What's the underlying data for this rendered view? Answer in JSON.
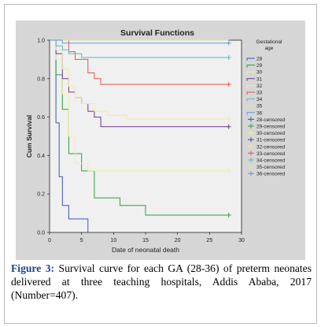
{
  "chart_data": {
    "type": "line",
    "title": "Survival Functions",
    "xlabel": "Date of neonatal death",
    "ylabel": "Cum Survival",
    "xlim": [
      0,
      30
    ],
    "ylim": [
      0.0,
      1.0
    ],
    "x_ticks": [
      "0",
      "5",
      "10",
      "15",
      "20",
      "25",
      "30"
    ],
    "y_ticks": [
      "0.0",
      "0.2",
      "0.4",
      "0.6",
      "0.8",
      "1.0"
    ],
    "legend_title": "Gestational age",
    "legend_placement": "right",
    "legend": [
      {
        "label": "28",
        "color": "#3a56b4",
        "marker": "line"
      },
      {
        "label": "29",
        "color": "#2e9e3e",
        "marker": "line"
      },
      {
        "label": "30",
        "color": "#eef0a8",
        "marker": "line"
      },
      {
        "label": "31",
        "color": "#6a3a8a",
        "marker": "line"
      },
      {
        "label": "32",
        "color": "#f1e8b0",
        "marker": "line"
      },
      {
        "label": "33",
        "color": "#e2574c",
        "marker": "line"
      },
      {
        "label": "34",
        "color": "#5ab8c6",
        "marker": "line"
      },
      {
        "label": "35",
        "color": "#e6e4a0",
        "marker": "line"
      },
      {
        "label": "36",
        "color": "#5f9ad6",
        "marker": "line"
      },
      {
        "label": "28-censored",
        "color": "#3a56b4",
        "marker": "plus"
      },
      {
        "label": "29-censored",
        "color": "#2e9e3e",
        "marker": "plus"
      },
      {
        "label": "30-censored",
        "color": "#eef0a8",
        "marker": "plus"
      },
      {
        "label": "31-censored",
        "color": "#6a3a8a",
        "marker": "plus"
      },
      {
        "label": "32-censored",
        "color": "#f1e8b0",
        "marker": "plus"
      },
      {
        "label": "33-censored",
        "color": "#e2574c",
        "marker": "plus"
      },
      {
        "label": "34-censored",
        "color": "#5ab8c6",
        "marker": "plus"
      },
      {
        "label": "35-censored",
        "color": "#e6e4a0",
        "marker": "plus"
      },
      {
        "label": "36-censored",
        "color": "#5f9ad6",
        "marker": "plus"
      }
    ],
    "series": [
      {
        "name": "28",
        "color": "#3a56b4",
        "points": [
          [
            0,
            1.0
          ],
          [
            1,
            1.0
          ],
          [
            1,
            0.57
          ],
          [
            1.5,
            0.57
          ],
          [
            1.5,
            0.29
          ],
          [
            2,
            0.29
          ],
          [
            2,
            0.14
          ],
          [
            3,
            0.14
          ],
          [
            3,
            0.07
          ],
          [
            6,
            0.07
          ],
          [
            6,
            0.0
          ]
        ],
        "censored": []
      },
      {
        "name": "29",
        "color": "#2e9e3e",
        "points": [
          [
            0,
            1.0
          ],
          [
            1,
            1.0
          ],
          [
            1,
            0.82
          ],
          [
            2,
            0.82
          ],
          [
            2,
            0.64
          ],
          [
            3,
            0.64
          ],
          [
            3,
            0.41
          ],
          [
            5,
            0.41
          ],
          [
            5,
            0.32
          ],
          [
            7,
            0.32
          ],
          [
            7,
            0.18
          ],
          [
            11,
            0.18
          ],
          [
            11,
            0.14
          ],
          [
            15,
            0.14
          ],
          [
            15,
            0.09
          ],
          [
            28,
            0.09
          ]
        ],
        "censored": [
          [
            28,
            0.09
          ]
        ]
      },
      {
        "name": "30",
        "color": "#eef0a8",
        "points": [
          [
            0,
            1.0
          ],
          [
            1,
            1.0
          ],
          [
            1,
            0.9
          ],
          [
            2,
            0.9
          ],
          [
            2,
            0.72
          ],
          [
            3,
            0.72
          ],
          [
            3,
            0.5
          ],
          [
            4,
            0.5
          ],
          [
            4,
            0.36
          ],
          [
            6,
            0.36
          ],
          [
            6,
            0.32
          ],
          [
            28,
            0.32
          ]
        ],
        "censored": [
          [
            28,
            0.32
          ]
        ]
      },
      {
        "name": "31",
        "color": "#6a3a8a",
        "points": [
          [
            0,
            1.0
          ],
          [
            1,
            1.0
          ],
          [
            1,
            0.93
          ],
          [
            2,
            0.93
          ],
          [
            2,
            0.8
          ],
          [
            3,
            0.8
          ],
          [
            3,
            0.73
          ],
          [
            4,
            0.73
          ],
          [
            4,
            0.7
          ],
          [
            5,
            0.7
          ],
          [
            5,
            0.67
          ],
          [
            6,
            0.67
          ],
          [
            6,
            0.63
          ],
          [
            7,
            0.63
          ],
          [
            7,
            0.6
          ],
          [
            8,
            0.6
          ],
          [
            8,
            0.55
          ],
          [
            28,
            0.55
          ]
        ],
        "censored": [
          [
            28,
            0.55
          ]
        ]
      },
      {
        "name": "32",
        "color": "#f1e8b0",
        "points": [
          [
            0,
            1.0
          ],
          [
            1,
            1.0
          ],
          [
            1,
            0.95
          ],
          [
            2,
            0.95
          ],
          [
            2,
            0.85
          ],
          [
            3,
            0.85
          ],
          [
            3,
            0.76
          ],
          [
            4,
            0.76
          ],
          [
            4,
            0.7
          ],
          [
            5,
            0.7
          ],
          [
            5,
            0.67
          ],
          [
            7,
            0.67
          ],
          [
            7,
            0.63
          ],
          [
            9,
            0.63
          ],
          [
            9,
            0.61
          ],
          [
            12,
            0.61
          ],
          [
            12,
            0.59
          ],
          [
            28,
            0.59
          ]
        ],
        "censored": [
          [
            28,
            0.59
          ]
        ]
      },
      {
        "name": "33",
        "color": "#e2574c",
        "points": [
          [
            0,
            1.0
          ],
          [
            3,
            1.0
          ],
          [
            3,
            0.94
          ],
          [
            4,
            0.94
          ],
          [
            4,
            0.9
          ],
          [
            6,
            0.9
          ],
          [
            6,
            0.83
          ],
          [
            7,
            0.83
          ],
          [
            7,
            0.8
          ],
          [
            8,
            0.8
          ],
          [
            8,
            0.77
          ],
          [
            28,
            0.77
          ]
        ],
        "censored": [
          [
            28,
            0.77
          ]
        ]
      },
      {
        "name": "34",
        "color": "#5ab8c6",
        "points": [
          [
            0,
            1.0
          ],
          [
            1,
            1.0
          ],
          [
            1,
            0.97
          ],
          [
            2,
            0.97
          ],
          [
            2,
            0.95
          ],
          [
            3,
            0.95
          ],
          [
            3,
            0.93
          ],
          [
            5,
            0.93
          ],
          [
            5,
            0.91
          ],
          [
            28,
            0.91
          ]
        ],
        "censored": [
          [
            28,
            0.91
          ]
        ]
      },
      {
        "name": "35",
        "color": "#e6e4a0",
        "points": [
          [
            0,
            1.0
          ],
          [
            28,
            1.0
          ]
        ],
        "censored": []
      },
      {
        "name": "36",
        "color": "#5f9ad6",
        "points": [
          [
            0,
            1.0
          ],
          [
            2,
            1.0
          ],
          [
            2,
            0.985
          ],
          [
            28,
            0.985
          ]
        ],
        "censored": [
          [
            28,
            0.985
          ]
        ]
      }
    ]
  },
  "caption": {
    "label": "Figure 3:",
    "text": " Survival curve for each GA (28-36) of preterm neonates delivered at three teaching hospitals, Addis Ababa, 2017 (Number=407)."
  }
}
